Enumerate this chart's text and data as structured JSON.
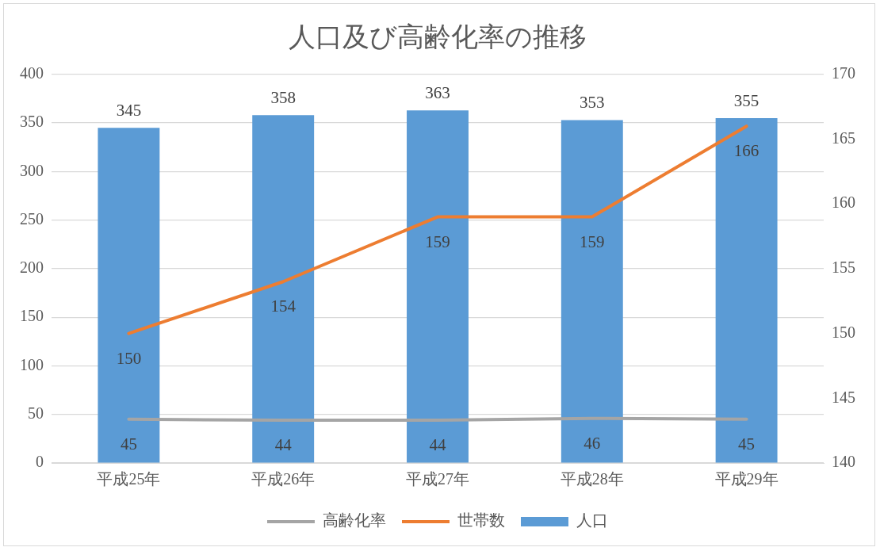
{
  "chart_data": {
    "type": "bar",
    "title": "人口及び高齢化率の推移",
    "categories": [
      "平成25年",
      "平成26年",
      "平成27年",
      "平成28年",
      "平成29年"
    ],
    "series": [
      {
        "name": "人口",
        "color": "#5b9bd5",
        "values": [
          345,
          358,
          363,
          353,
          355
        ]
      },
      {
        "name": "高齢化率",
        "type": "line",
        "color": "#a5a5a5",
        "values": [
          45,
          44,
          44,
          46,
          45
        ]
      },
      {
        "name": "世帯数",
        "type": "line",
        "axis": "y2",
        "color": "#ed7d31",
        "values": [
          150,
          154,
          159,
          159,
          166
        ]
      }
    ],
    "ylim": [
      0,
      400
    ],
    "yticks": [
      0,
      50,
      100,
      150,
      200,
      250,
      300,
      350,
      400
    ],
    "y2lim": [
      140,
      170
    ],
    "y2ticks": [
      140,
      145,
      150,
      155,
      160,
      165,
      170
    ],
    "grid": "y",
    "legend": "bottom",
    "data_labels": true
  }
}
